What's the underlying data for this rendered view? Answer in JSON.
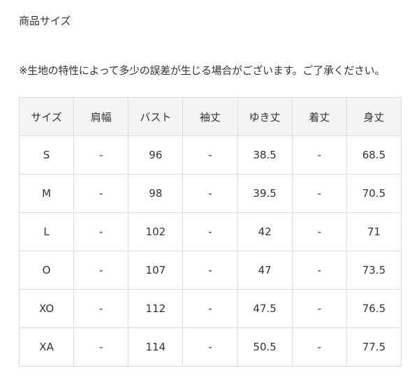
{
  "title": "商品サイズ",
  "note": "※生地の特性によって多少の誤差が生じる場合がございます。ご了承ください。",
  "table": {
    "headers": [
      "サイズ",
      "肩幅",
      "バスト",
      "袖丈",
      "ゆき丈",
      "着丈",
      "身丈"
    ],
    "rows": [
      [
        "S",
        "-",
        "96",
        "-",
        "38.5",
        "-",
        "68.5"
      ],
      [
        "M",
        "-",
        "98",
        "-",
        "39.5",
        "-",
        "70.5"
      ],
      [
        "L",
        "-",
        "102",
        "-",
        "42",
        "-",
        "71"
      ],
      [
        "O",
        "-",
        "107",
        "-",
        "47",
        "-",
        "73.5"
      ],
      [
        "XO",
        "-",
        "112",
        "-",
        "47.5",
        "-",
        "76.5"
      ],
      [
        "XA",
        "-",
        "114",
        "-",
        "50.5",
        "-",
        "77.5"
      ]
    ]
  }
}
